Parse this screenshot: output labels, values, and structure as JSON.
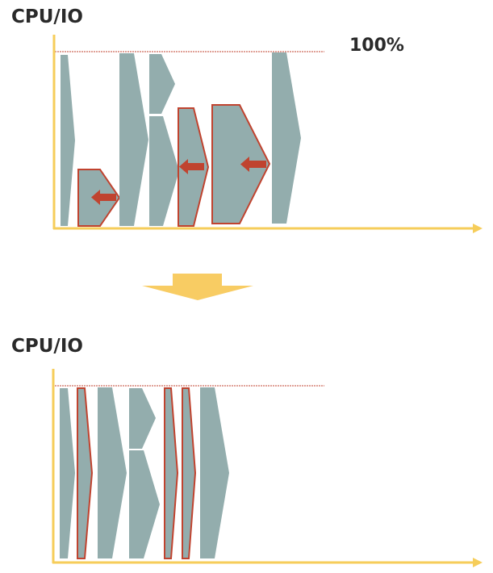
{
  "top_panel": {
    "axis_label": "CPU/IO",
    "limit_label": "100%"
  },
  "bottom_panel": {
    "axis_label": "CPU/IO"
  },
  "colors": {
    "axis": "#f6cd5a",
    "bar": "#93adad",
    "highlight_stroke": "#c0432f",
    "arrow": "#c0432f",
    "limit_line": "#c0432f",
    "transition_arrow": "#f8cc63"
  }
}
